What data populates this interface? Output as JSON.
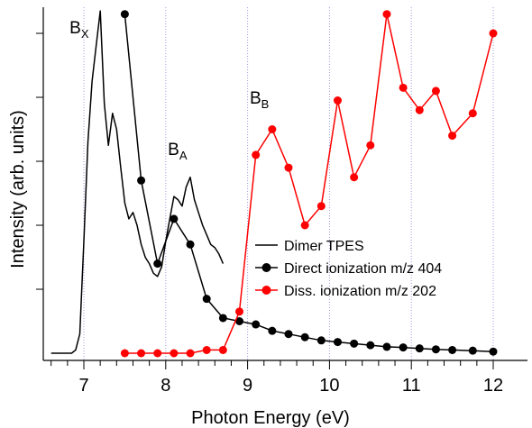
{
  "chart_data": {
    "type": "line",
    "title": "",
    "xlabel": "Photon Energy (eV)",
    "ylabel": "Intensity (arb. units)",
    "xlim": [
      6.6,
      12.1
    ],
    "ylim": [
      0,
      1.06
    ],
    "x_ticks": [
      7,
      8,
      9,
      10,
      11,
      12
    ],
    "x_tick_labels": [
      "7",
      "8",
      "9",
      "10",
      "11",
      "12"
    ],
    "x_minor_step": 0.2,
    "y_ticks": [
      0.2,
      0.4,
      0.6,
      0.8,
      1.0
    ],
    "y_tick_labels_shown": false,
    "grid": {
      "x_dotted_at": [
        7,
        8,
        9,
        10,
        11,
        12
      ],
      "y": false
    },
    "legend": {
      "position": "lower-right"
    },
    "series": [
      {
        "name": "Dimer TPES",
        "style": "line",
        "color": "#000000",
        "x": [
          6.6,
          6.85,
          6.9,
          6.95,
          7.0,
          7.05,
          7.1,
          7.15,
          7.2,
          7.25,
          7.3,
          7.35,
          7.4,
          7.45,
          7.5,
          7.55,
          7.6,
          7.65,
          7.7,
          7.75,
          7.8,
          7.85,
          7.9,
          7.95,
          8.0,
          8.05,
          8.1,
          8.15,
          8.2,
          8.25,
          8.3,
          8.35,
          8.4,
          8.45,
          8.5,
          8.55,
          8.6,
          8.65,
          8.7
        ],
        "y": [
          0.0,
          0.0,
          0.01,
          0.06,
          0.35,
          0.66,
          0.85,
          0.96,
          1.07,
          0.78,
          0.65,
          0.75,
          0.7,
          0.58,
          0.47,
          0.42,
          0.44,
          0.4,
          0.34,
          0.3,
          0.28,
          0.25,
          0.24,
          0.27,
          0.35,
          0.42,
          0.49,
          0.48,
          0.46,
          0.52,
          0.55,
          0.48,
          0.44,
          0.4,
          0.37,
          0.34,
          0.33,
          0.31,
          0.28
        ]
      },
      {
        "name": "Direct ionization m/z 404",
        "style": "line+markers",
        "color": "#000000",
        "x": [
          7.5,
          7.7,
          7.9,
          8.1,
          8.3,
          8.5,
          8.7,
          8.9,
          9.1,
          9.3,
          9.5,
          9.7,
          9.9,
          10.1,
          10.3,
          10.5,
          10.7,
          10.9,
          11.1,
          11.3,
          11.5,
          11.75,
          12.0
        ],
        "y": [
          1.06,
          0.54,
          0.28,
          0.42,
          0.34,
          0.17,
          0.11,
          0.1,
          0.09,
          0.07,
          0.06,
          0.05,
          0.04,
          0.035,
          0.03,
          0.025,
          0.02,
          0.018,
          0.015,
          0.012,
          0.01,
          0.008,
          0.005
        ]
      },
      {
        "name": "Diss. ionization m/z 202",
        "style": "line+markers",
        "color": "#ff0000",
        "x": [
          7.5,
          7.7,
          7.9,
          8.1,
          8.3,
          8.5,
          8.7,
          8.9,
          9.1,
          9.3,
          9.5,
          9.7,
          9.9,
          10.1,
          10.3,
          10.5,
          10.7,
          10.9,
          11.1,
          11.3,
          11.5,
          11.75,
          12.0
        ],
        "y": [
          0.0,
          0.0,
          0.0,
          0.0,
          0.0,
          0.01,
          0.01,
          0.13,
          0.62,
          0.7,
          0.58,
          0.4,
          0.46,
          0.79,
          0.55,
          0.65,
          1.06,
          0.83,
          0.76,
          0.82,
          0.68,
          0.75,
          1.0
        ]
      }
    ],
    "annotations": [
      {
        "main": "B",
        "sub": "X",
        "x": 6.98,
        "y": 1.0
      },
      {
        "main": "B",
        "sub": "A",
        "x": 8.18,
        "y": 0.62
      },
      {
        "main": "B",
        "sub": "B",
        "x": 9.18,
        "y": 0.78
      }
    ]
  },
  "colors": {
    "axis": "#000000",
    "grid": "#9999dd",
    "red": "#ff0000",
    "black": "#000000"
  }
}
